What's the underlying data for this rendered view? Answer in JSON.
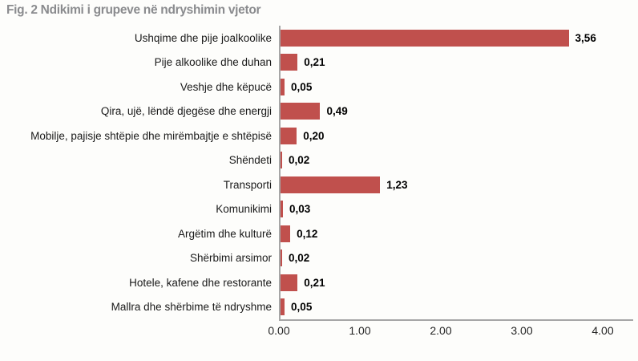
{
  "title": "Fig. 2 Ndikimi i grupeve në ndryshimin vjetor",
  "chart_data": {
    "type": "bar",
    "orientation": "horizontal",
    "title": "Fig. 2 Ndikimi i grupeve në ndryshimin vjetor",
    "categories": [
      "Ushqime dhe pije joalkoolike",
      "Pije alkoolike dhe duhan",
      "Veshje dhe këpucë",
      "Qira, ujë, lëndë djegëse dhe energji",
      "Mobilje, pajisje shtëpie dhe mirëmbajtje e shtëpisë",
      "Shëndeti",
      "Transporti",
      "Komunikimi",
      "Argëtim dhe kulturë",
      "Shërbimi arsimor",
      "Hotele, kafene dhe restorante",
      "Mallra dhe shërbime të ndryshme"
    ],
    "values": [
      3.56,
      0.21,
      0.05,
      0.49,
      0.2,
      0.02,
      1.23,
      0.03,
      0.12,
      0.02,
      0.21,
      0.05
    ],
    "value_labels": [
      "3,56",
      "0,21",
      "0,05",
      "0,49",
      "0,20",
      "0,02",
      "1,23",
      "0,03",
      "0,12",
      "0,02",
      "0,21",
      "0,05"
    ],
    "x_ticks": [
      "0.00",
      "1.00",
      "2.00",
      "3.00",
      "4.00"
    ],
    "xlim": [
      0,
      4
    ],
    "xlabel": "",
    "ylabel": "",
    "grid": false,
    "legend": false,
    "bar_color": "#C0504D",
    "axis_color": "#A6A6A6",
    "title_color": "#8A8B8E"
  }
}
